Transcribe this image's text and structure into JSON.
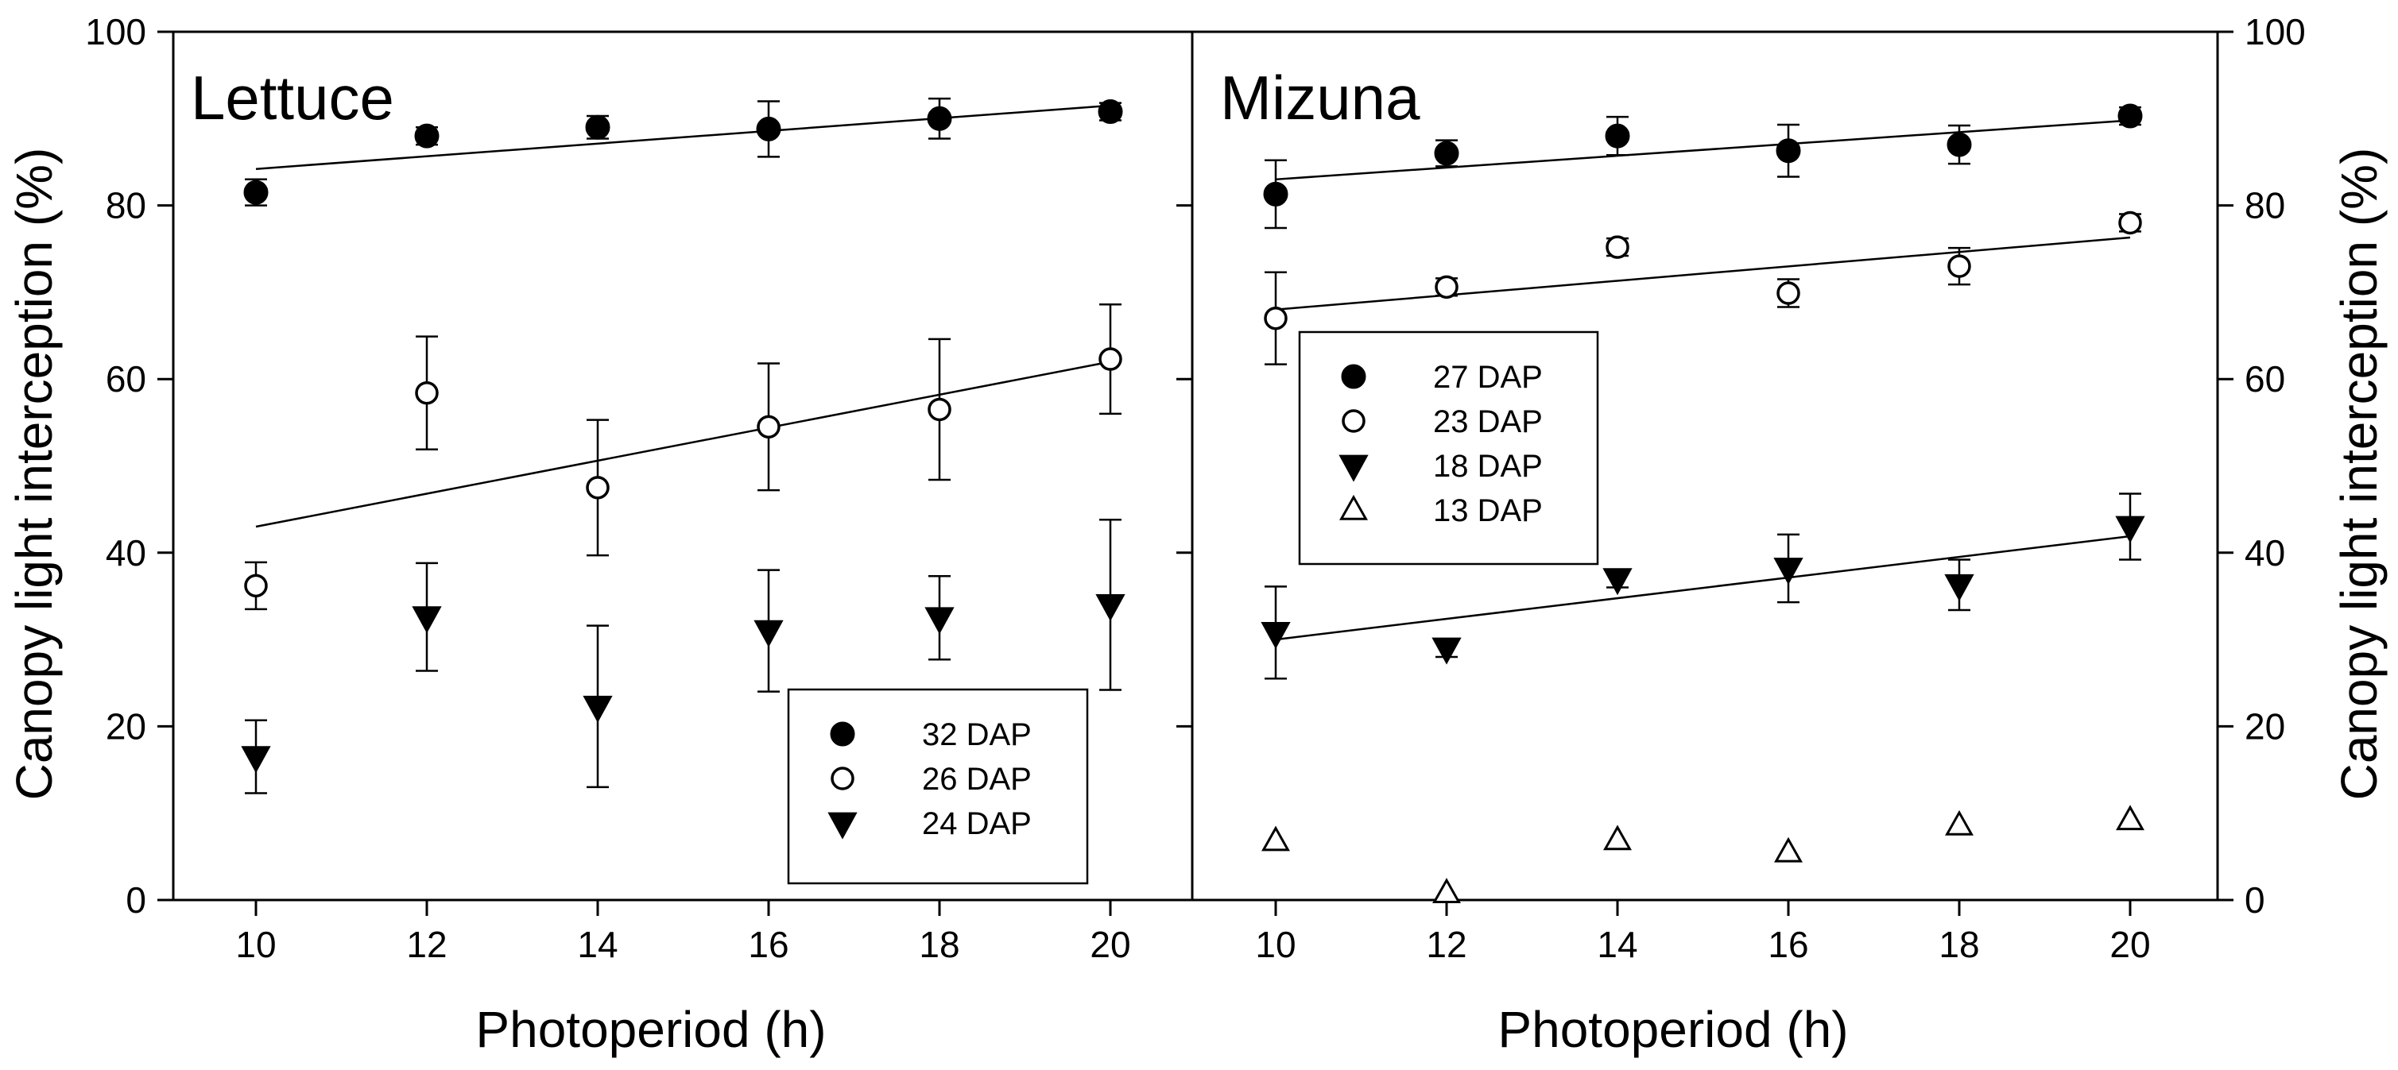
{
  "chart_data": [
    {
      "type": "scatter",
      "title": "Lettuce",
      "xlabel": "Photoperiod (h)",
      "ylabel": "Canopy light interception (%)",
      "xlim": [
        8.8,
        20.8
      ],
      "ylim": [
        0,
        100
      ],
      "x_ticks": [
        10,
        12,
        14,
        16,
        18,
        20
      ],
      "y_ticks": [
        0,
        20,
        40,
        60,
        80,
        100
      ],
      "legend_position": "bottom-right",
      "series": [
        {
          "name": "32 DAP",
          "marker": "filled-circle",
          "x": [
            10,
            12,
            14,
            16,
            18,
            20
          ],
          "y": [
            81.5,
            88,
            89,
            88.8,
            90,
            90.8
          ],
          "err": [
            1.5,
            1.0,
            1.3,
            3.2,
            2.3,
            1.0
          ],
          "fit": [
            84.2,
            91.5
          ]
        },
        {
          "name": "26 DAP",
          "marker": "open-circle",
          "x": [
            10,
            12,
            14,
            16,
            18,
            20
          ],
          "y": [
            36.2,
            58.4,
            47.5,
            54.5,
            56.5,
            62.3
          ],
          "err": [
            2.7,
            6.5,
            7.8,
            7.3,
            8.1,
            6.3
          ],
          "fit": [
            43,
            62
          ]
        },
        {
          "name": "24 DAP",
          "marker": "filled-triangle-down",
          "x": [
            10,
            12,
            14,
            16,
            18,
            20
          ],
          "y": [
            16.5,
            32.6,
            22.3,
            31,
            32.5,
            34
          ],
          "err": [
            4.2,
            6.2,
            9.3,
            7.0,
            4.8,
            9.8
          ],
          "fit": null
        }
      ]
    },
    {
      "type": "scatter",
      "title": "Mizuna",
      "xlabel": "Photoperiod (h)",
      "ylabel": "Canopy light interception (%)",
      "xlim": [
        8.8,
        20.8
      ],
      "ylim": [
        0,
        100
      ],
      "x_ticks": [
        10,
        12,
        14,
        16,
        18,
        20
      ],
      "y_ticks": [
        0,
        20,
        40,
        60,
        80,
        100
      ],
      "legend_position": "middle-left",
      "series": [
        {
          "name": "27 DAP",
          "marker": "filled-circle",
          "x": [
            10,
            12,
            14,
            16,
            18,
            20
          ],
          "y": [
            81.3,
            86,
            88,
            86.3,
            87,
            90.3
          ],
          "err": [
            3.9,
            1.5,
            2.2,
            3.0,
            2.2,
            1.0
          ],
          "fit": [
            83,
            89.8
          ]
        },
        {
          "name": "23 DAP",
          "marker": "open-circle",
          "x": [
            10,
            12,
            14,
            16,
            18,
            20
          ],
          "y": [
            67,
            70.6,
            75.2,
            69.9,
            73,
            78
          ],
          "err": [
            5.3,
            1.0,
            1.0,
            1.6,
            2.1,
            1.0
          ],
          "fit": [
            68,
            76.3
          ]
        },
        {
          "name": "18 DAP",
          "marker": "filled-triangle-down",
          "x": [
            10,
            12,
            14,
            16,
            18,
            20
          ],
          "y": [
            30.8,
            29,
            37,
            38.2,
            36.3,
            43
          ],
          "err": [
            5.3,
            1.0,
            1.0,
            3.9,
            2.9,
            3.8
          ],
          "fit": [
            30,
            41.9
          ]
        },
        {
          "name": "13 DAP",
          "marker": "open-triangle-up",
          "x": [
            10,
            12,
            14,
            16,
            18,
            20
          ],
          "y": [
            6.8,
            0.8,
            6.9,
            5.5,
            8.6,
            9.2
          ],
          "err": [
            0,
            0,
            0,
            0,
            0,
            0
          ],
          "fit": null
        }
      ]
    }
  ]
}
